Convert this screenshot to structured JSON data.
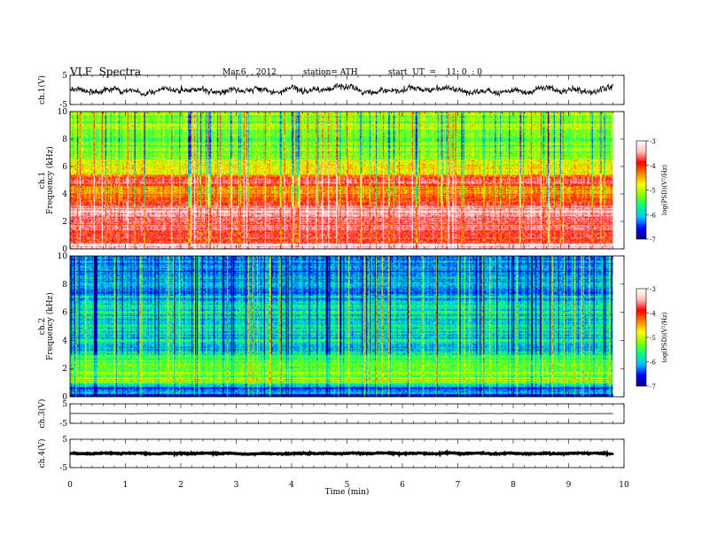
{
  "header": {
    "title": "VLF  Spectra",
    "date": "Mar.6  , 2012",
    "station": "station= ATH",
    "start": "start  UT  =    11: 0  : 0"
  },
  "colorbar": {
    "label": "log(PSD)(V²/Hz)",
    "ticks": [
      "-3",
      "-4",
      "-5",
      "-6",
      "-7"
    ],
    "range": [
      -7,
      -3
    ],
    "colors": [
      "#000080",
      "#0000ff",
      "#00c0ff",
      "#00ff80",
      "#80ff00",
      "#ffff00",
      "#ff8000",
      "#ff0000",
      "#ffc0c0",
      "#ffffff"
    ]
  },
  "chart_data": [
    {
      "name": "ch1-waveform",
      "type": "line",
      "ylabel": "ch.1(V)",
      "yticks": [
        "5",
        "-5"
      ],
      "ylim": [
        -5,
        5
      ],
      "xlim": [
        0,
        10
      ],
      "data_end_min": 9.8,
      "baseline": 0,
      "amplitude": 2.2,
      "color": "#000000"
    },
    {
      "name": "ch1-spectrogram",
      "type": "heatmap",
      "ylabel": "ch.1\nFrequency (kHz)",
      "yticks": [
        "10",
        "8",
        "6",
        "4",
        "2",
        "0"
      ],
      "ylim": [
        0,
        10
      ],
      "xlim": [
        0,
        10
      ],
      "data_end_min": 9.8,
      "freq_profile_khz": [
        [
          0.0,
          -3.0
        ],
        [
          0.3,
          -3.5
        ],
        [
          0.6,
          -4.0
        ],
        [
          1.0,
          -3.8
        ],
        [
          1.5,
          -3.6
        ],
        [
          2.0,
          -3.7
        ],
        [
          2.5,
          -3.4
        ],
        [
          3.0,
          -3.6
        ],
        [
          3.5,
          -4.0
        ],
        [
          4.0,
          -4.4
        ],
        [
          4.5,
          -4.2
        ],
        [
          5.0,
          -3.5
        ],
        [
          5.5,
          -4.6
        ],
        [
          6.0,
          -4.8
        ],
        [
          6.5,
          -5.0
        ],
        [
          7.0,
          -5.1
        ],
        [
          8.0,
          -5.2
        ],
        [
          9.0,
          -5.1
        ],
        [
          10.0,
          -5.2
        ]
      ]
    },
    {
      "name": "ch2-spectrogram",
      "type": "heatmap",
      "ylabel": "ch.2\nFrequency (kHz)",
      "yticks": [
        "10",
        "8",
        "6",
        "4",
        "2",
        "0"
      ],
      "ylim": [
        0,
        10
      ],
      "xlim": [
        0,
        10
      ],
      "data_end_min": 9.8,
      "freq_profile_khz": [
        [
          0.0,
          -6.8
        ],
        [
          0.3,
          -6.2
        ],
        [
          0.6,
          -6.6
        ],
        [
          1.0,
          -5.3
        ],
        [
          1.5,
          -5.2
        ],
        [
          2.0,
          -5.3
        ],
        [
          2.5,
          -5.4
        ],
        [
          3.0,
          -5.6
        ],
        [
          3.5,
          -6.1
        ],
        [
          4.0,
          -5.8
        ],
        [
          4.5,
          -5.9
        ],
        [
          5.0,
          -5.8
        ],
        [
          5.5,
          -6.1
        ],
        [
          6.0,
          -5.8
        ],
        [
          6.5,
          -5.7
        ],
        [
          7.0,
          -6.2
        ],
        [
          8.0,
          -6.0
        ],
        [
          9.0,
          -6.2
        ],
        [
          10.0,
          -6.3
        ]
      ]
    },
    {
      "name": "ch3-waveform",
      "type": "line",
      "ylabel": "ch.3(V)",
      "yticks": [
        "5",
        "-5"
      ],
      "ylim": [
        -5,
        5
      ],
      "xlim": [
        0,
        10
      ],
      "data_end_min": 9.8,
      "baseline": 0,
      "amplitude": 0.1,
      "color": "#000000"
    },
    {
      "name": "ch4-waveform",
      "type": "line",
      "ylabel": "ch.4(V)",
      "yticks": [
        "5",
        "-5"
      ],
      "ylim": [
        -5,
        5
      ],
      "xlim": [
        0,
        10
      ],
      "data_end_min": 9.8,
      "baseline": 0,
      "amplitude": 0.35,
      "color": "#000000"
    }
  ],
  "xaxis": {
    "label": "Time  (min)",
    "ticks": [
      "0",
      "1",
      "2",
      "3",
      "4",
      "5",
      "6",
      "7",
      "8",
      "9",
      "10"
    ]
  }
}
